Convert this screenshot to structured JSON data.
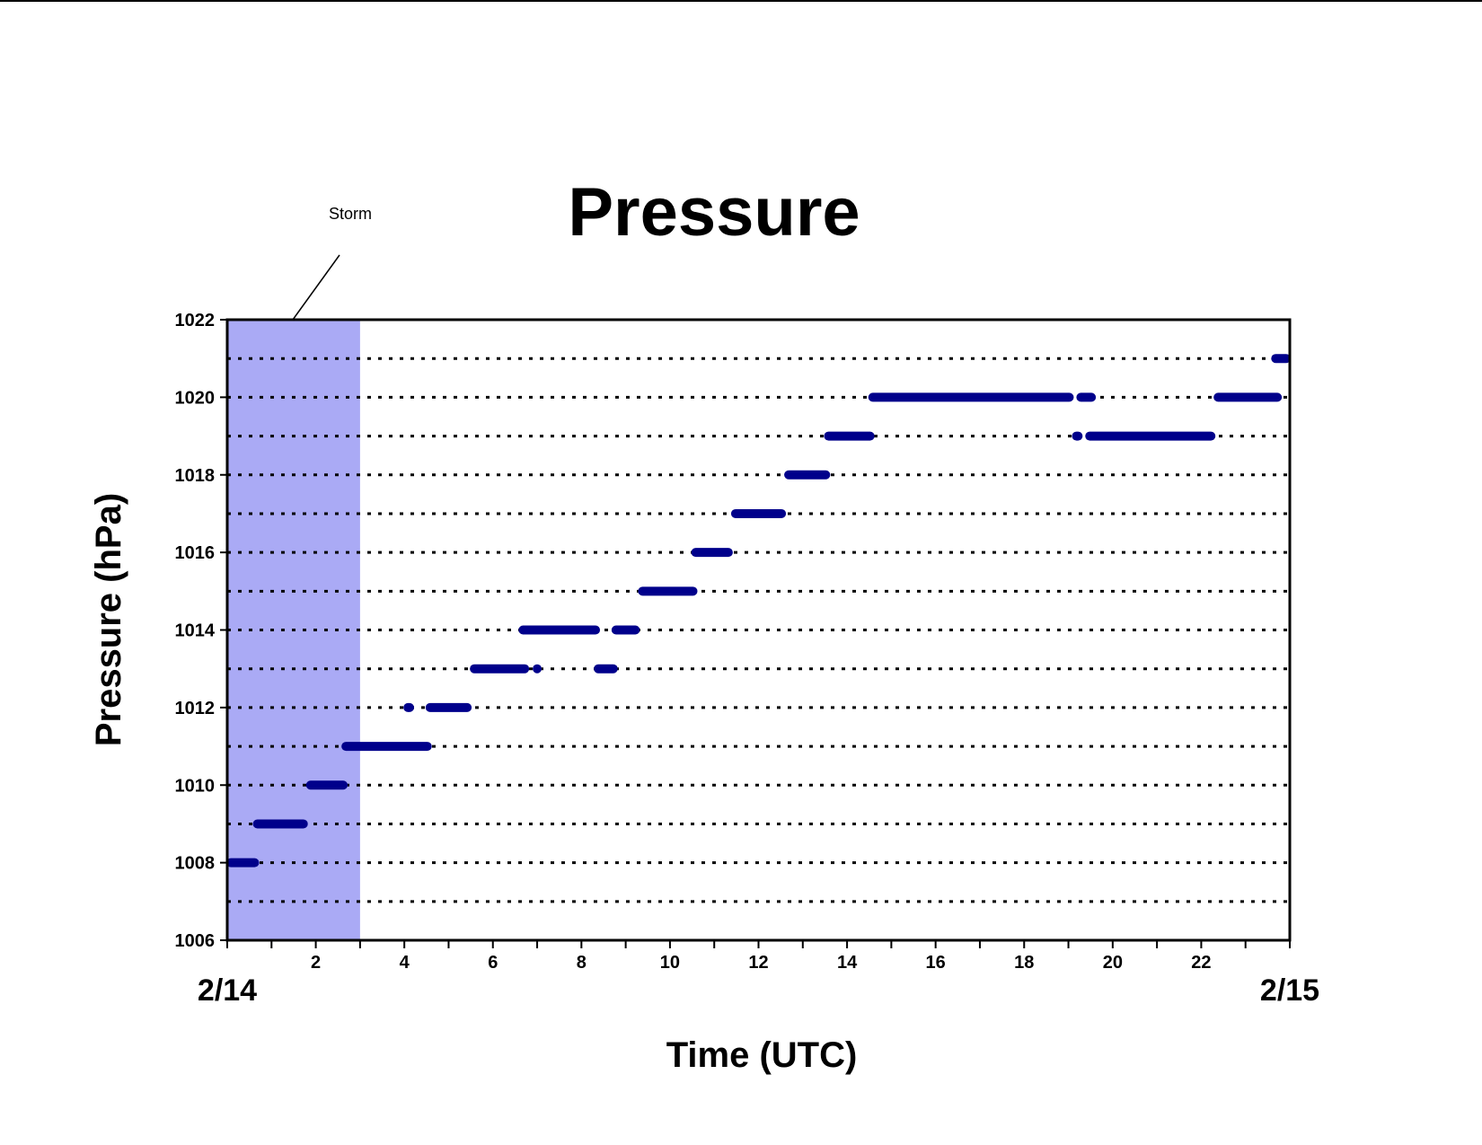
{
  "chart_data": {
    "type": "scatter",
    "title": "Pressure",
    "xlabel": "Time (UTC)",
    "ylabel": "Pressure (hPa)",
    "xlim": [
      0,
      24
    ],
    "ylim": [
      1006,
      1022
    ],
    "xticks": [
      2,
      4,
      6,
      8,
      10,
      12,
      14,
      16,
      18,
      20,
      22
    ],
    "yticks": [
      1006,
      1008,
      1010,
      1012,
      1014,
      1016,
      1018,
      1020,
      1022
    ],
    "date_labels": {
      "start": "2/14",
      "end": "2/15"
    },
    "grid": {
      "horizontal": "dotted",
      "every": 1
    },
    "shaded_region": {
      "label": "Storm",
      "x": [
        0,
        3
      ],
      "color": "#aaaaf5"
    },
    "marker_color": "#00008b",
    "series": [
      {
        "segments": [
          {
            "x": [
              0.0,
              0.7
            ],
            "y": 1008
          },
          {
            "x": [
              0.6,
              1.8
            ],
            "y": 1009
          },
          {
            "x": [
              1.8,
              2.7
            ],
            "y": 1010
          },
          {
            "x": [
              2.6,
              4.6
            ],
            "y": 1011
          },
          {
            "x": [
              4.0,
              4.2
            ],
            "y": 1012
          },
          {
            "x": [
              4.5,
              5.5
            ],
            "y": 1012
          },
          {
            "x": [
              5.5,
              6.8
            ],
            "y": 1013
          },
          {
            "x": [
              7.0,
              7.0
            ],
            "y": 1013
          },
          {
            "x": [
              8.3,
              8.8
            ],
            "y": 1013
          },
          {
            "x": [
              6.6,
              8.4
            ],
            "y": 1014
          },
          {
            "x": [
              8.7,
              9.3
            ],
            "y": 1014
          },
          {
            "x": [
              9.3,
              10.6
            ],
            "y": 1015
          },
          {
            "x": [
              10.5,
              11.4
            ],
            "y": 1016
          },
          {
            "x": [
              11.4,
              12.6
            ],
            "y": 1017
          },
          {
            "x": [
              12.6,
              13.6
            ],
            "y": 1018
          },
          {
            "x": [
              13.5,
              14.6
            ],
            "y": 1019
          },
          {
            "x": [
              14.5,
              19.1
            ],
            "y": 1020
          },
          {
            "x": [
              19.2,
              19.6
            ],
            "y": 1020
          },
          {
            "x": [
              19.1,
              19.3
            ],
            "y": 1019
          },
          {
            "x": [
              19.4,
              22.3
            ],
            "y": 1019
          },
          {
            "x": [
              22.3,
              23.8
            ],
            "y": 1020
          },
          {
            "x": [
              23.6,
              24.0
            ],
            "y": 1021
          }
        ]
      }
    ]
  }
}
